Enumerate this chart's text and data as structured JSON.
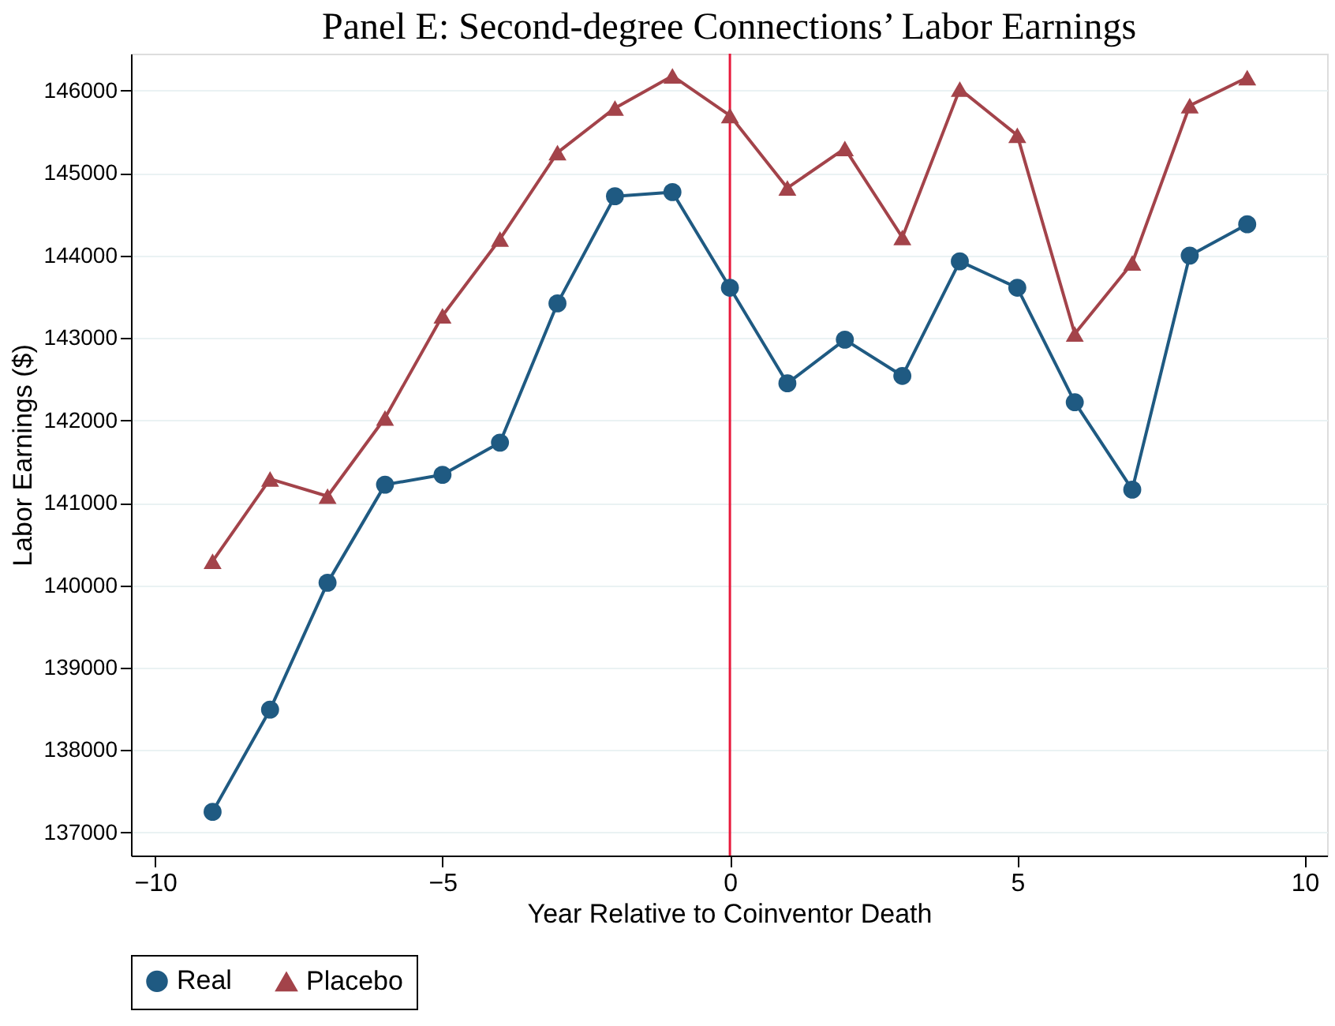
{
  "chart_data": {
    "type": "line",
    "title": "Panel E: Second-degree Connections’ Labor Earnings",
    "xlabel": "Year Relative to Coinventor Death",
    "ylabel": "Labor Earnings ($)",
    "x": [
      -9,
      -8,
      -7,
      -6,
      -5,
      -4,
      -3,
      -2,
      -1,
      0,
      1,
      2,
      3,
      4,
      5,
      6,
      7,
      8,
      9
    ],
    "series": [
      {
        "name": "Real",
        "color": "#1f5a82",
        "marker": "circle",
        "values": [
          137250,
          138490,
          140030,
          141220,
          141340,
          141730,
          143420,
          144720,
          144770,
          143610,
          142450,
          142980,
          142540,
          143930,
          143610,
          142220,
          141160,
          144000,
          144380
        ]
      },
      {
        "name": "Placebo",
        "color": "#a3434a",
        "marker": "triangle",
        "values": [
          140290,
          141290,
          141080,
          142030,
          143270,
          144200,
          145250,
          145790,
          146180,
          145700,
          144820,
          145300,
          144220,
          146020,
          145460,
          143050,
          143910,
          145820,
          146160
        ]
      }
    ],
    "xlim": [
      -10.42,
      10.39
    ],
    "xticks": [
      -10,
      -5,
      0,
      5,
      10
    ],
    "ylim": [
      136720,
      146450
    ],
    "yticks": [
      137000,
      138000,
      139000,
      140000,
      141000,
      142000,
      143000,
      144000,
      145000,
      146000
    ],
    "ref_lines": [
      {
        "axis": "x",
        "value": 0,
        "color": "#e8193c"
      }
    ],
    "grid": "y",
    "legend": "bottom",
    "line_style": "solid"
  }
}
